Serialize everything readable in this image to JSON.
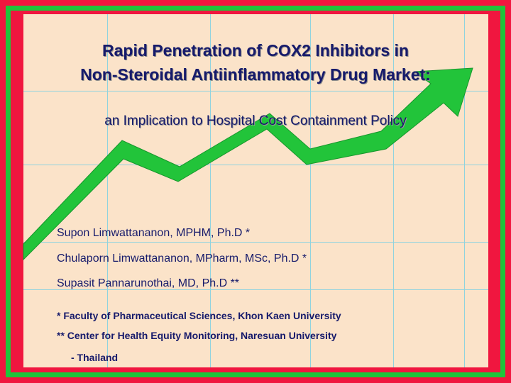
{
  "title_line1": "Rapid Penetration of COX2 Inhibitors in",
  "title_line2": "Non-Steroidal Antiinflammatory Drug Market:",
  "subtitle": "an Implication to Hospital Cost Containment Policy",
  "authors": [
    "Supon Limwattananon, MPHM, Ph.D *",
    "Chulaporn Limwattananon, MPharm, MSc, Ph.D *",
    "Supasit Pannarunothai, MD, Ph.D **"
  ],
  "affiliations": [
    "*   Faculty of Pharmaceutical Sciences, Khon Kaen University",
    "** Center for Health Equity Monitoring, Naresuan University",
    "- Thailand"
  ],
  "colors": {
    "outer_border": "#f0163f",
    "green_frame": "#1fc43a",
    "background": "#fbe3c9",
    "grid": "#8fd3df",
    "arrow": "#22c43a",
    "text": "#161a6b"
  }
}
